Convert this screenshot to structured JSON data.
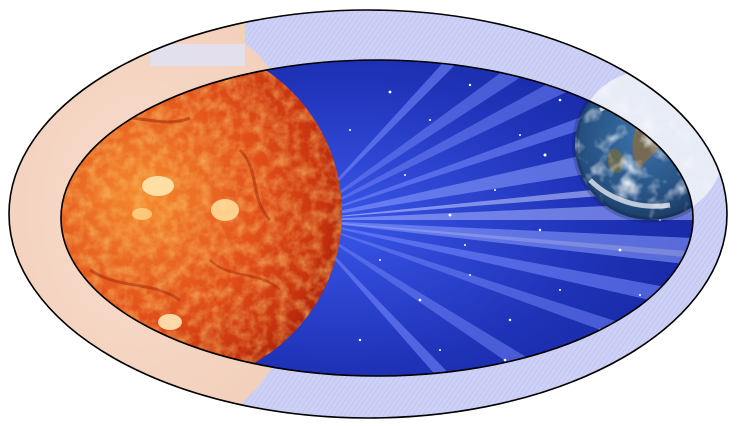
{
  "scene": {
    "subject": "sun-earth-space-illustration",
    "colors": {
      "background": "#ffffff",
      "space_deep": "#0c1a8a",
      "space_mid": "#1f33b8",
      "ray_light": "#cfd6ff",
      "outer_ring": "#c7ccf5",
      "ring_faded_sun": "#f6dccd",
      "sun_core": "#ffd36a",
      "sun_mid": "#e2501a",
      "sun_edge": "#b3240b",
      "earth_ocean": "#2a5a8e",
      "earth_land": "#7d6a4c",
      "earth_cloud": "#f4f6fb",
      "outline": "#000000"
    }
  }
}
